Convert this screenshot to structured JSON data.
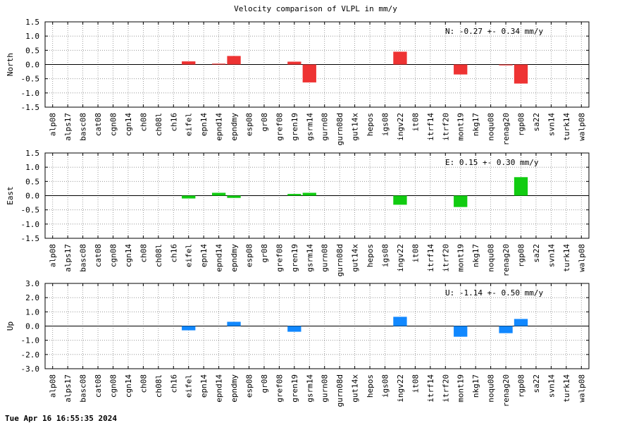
{
  "title": "Velocity comparison of VLPL in mm/y",
  "timestamp": "Tue Apr 16 16:55:35 2024",
  "chart_data": [
    {
      "type": "bar",
      "ylabel": "North",
      "ylim": [
        -1.5,
        1.5
      ],
      "yticks": [
        "1.5",
        "1.0",
        "0.5",
        "0.0",
        "-0.5",
        "-1.0",
        "-1.5"
      ],
      "grid": true,
      "color": "#ee3333",
      "annotation": "N:  -0.27 +-  0.34 mm/y",
      "categories": [
        "alp08",
        "alps17",
        "basc08",
        "cat08",
        "cgn08",
        "cgn14",
        "ch08",
        "ch08l",
        "ch16",
        "eifel",
        "epn14",
        "epnd14",
        "epndmy",
        "esp08",
        "gr08",
        "gref08",
        "gren19",
        "gsrm14",
        "gurn08",
        "gurn08d",
        "gut14x",
        "hepos",
        "igs08",
        "ingv22",
        "it08",
        "itrf14",
        "itrf20",
        "mont19",
        "nkg17",
        "noqu08",
        "renag20",
        "rgp08",
        "sa22",
        "svn14",
        "turk14",
        "walp08"
      ],
      "values": [
        0,
        0,
        0,
        0,
        0,
        0,
        0,
        0,
        0,
        0.11,
        0,
        0.03,
        0.3,
        0,
        0,
        0,
        0.1,
        -0.63,
        0,
        0,
        0,
        0,
        0,
        0.45,
        0,
        0,
        0,
        -0.35,
        0,
        0,
        -0.03,
        -0.67,
        0,
        0,
        0,
        0
      ]
    },
    {
      "type": "bar",
      "ylabel": "East",
      "ylim": [
        -1.5,
        1.5
      ],
      "yticks": [
        "1.5",
        "1.0",
        "0.5",
        "0.0",
        "-0.5",
        "-1.0",
        "-1.5"
      ],
      "grid": true,
      "color": "#11cc11",
      "annotation": "E:   0.15 +-  0.30 mm/y",
      "categories": [
        "alp08",
        "alps17",
        "basc08",
        "cat08",
        "cgn08",
        "cgn14",
        "ch08",
        "ch08l",
        "ch16",
        "eifel",
        "epn14",
        "epnd14",
        "epndmy",
        "esp08",
        "gr08",
        "gref08",
        "gren19",
        "gsrm14",
        "gurn08",
        "gurn08d",
        "gut14x",
        "hepos",
        "igs08",
        "ingv22",
        "it08",
        "itrf14",
        "itrf20",
        "mont19",
        "nkg17",
        "noqu08",
        "renag20",
        "rgp08",
        "sa22",
        "svn14",
        "turk14",
        "walp08"
      ],
      "values": [
        0,
        0,
        0,
        0,
        0,
        0,
        0,
        0,
        0,
        -0.1,
        0,
        0.1,
        -0.08,
        0,
        0,
        0,
        0.06,
        0.1,
        0,
        0,
        0,
        0,
        0,
        -0.32,
        0,
        0,
        0,
        -0.4,
        0,
        0,
        0,
        0.65,
        0,
        0,
        0,
        0
      ]
    },
    {
      "type": "bar",
      "ylabel": "Up",
      "ylim": [
        -3.0,
        3.0
      ],
      "yticks": [
        "3.0",
        "2.0",
        "1.0",
        "0.0",
        "-1.0",
        "-2.0",
        "-3.0"
      ],
      "grid": true,
      "color": "#1188ff",
      "annotation": "U:  -1.14 +-  0.50 mm/y",
      "categories": [
        "alp08",
        "alps17",
        "basc08",
        "cat08",
        "cgn08",
        "cgn14",
        "ch08",
        "ch08l",
        "ch16",
        "eifel",
        "epn14",
        "epnd14",
        "epndmy",
        "esp08",
        "gr08",
        "gref08",
        "gren19",
        "gsrm14",
        "gurn08",
        "gurn08d",
        "gut14x",
        "hepos",
        "igs08",
        "ingv22",
        "it08",
        "itrf14",
        "itrf20",
        "mont19",
        "nkg17",
        "noqu08",
        "renag20",
        "rgp08",
        "sa22",
        "svn14",
        "turk14",
        "walp08"
      ],
      "values": [
        0,
        0,
        0,
        0,
        0,
        0,
        0,
        0,
        0,
        -0.3,
        0,
        0,
        0.3,
        0,
        0,
        0,
        -0.4,
        0,
        0,
        0,
        0,
        0,
        0,
        0.65,
        0,
        0,
        0,
        -0.75,
        0,
        0,
        -0.5,
        0.5,
        0,
        0,
        0,
        0
      ]
    }
  ]
}
